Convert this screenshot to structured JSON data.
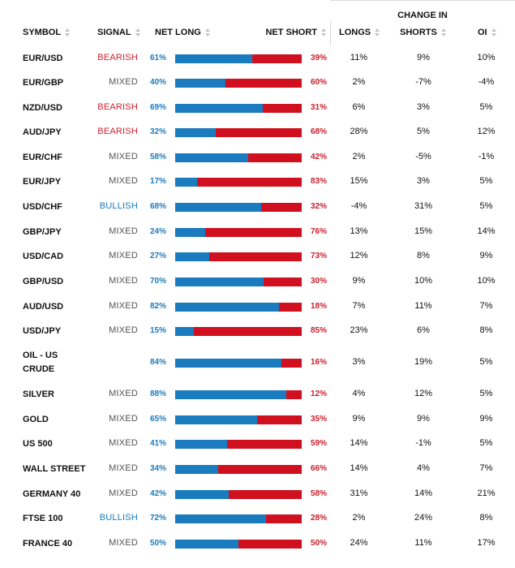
{
  "header": {
    "change_in": "CHANGE IN",
    "symbol": "SYMBOL",
    "signal": "SIGNAL",
    "net_long": "NET LONG",
    "net_short": "NET SHORT",
    "longs": "LONGS",
    "shorts": "SHORTS",
    "oi": "OI"
  },
  "colors": {
    "long": "#1a7bbf",
    "short": "#d0101f",
    "mixed": "#555555"
  },
  "rows": [
    {
      "symbol": "EUR/USD",
      "signal": "BEARISH",
      "net_long": "61%",
      "long_fraction": 0.61,
      "net_short": "39%",
      "longs": "11%",
      "shorts": "9%",
      "oi": "10%"
    },
    {
      "symbol": "EUR/GBP",
      "signal": "MIXED",
      "net_long": "40%",
      "long_fraction": 0.4,
      "net_short": "60%",
      "longs": "2%",
      "shorts": "-7%",
      "oi": "-4%"
    },
    {
      "symbol": "NZD/USD",
      "signal": "BEARISH",
      "net_long": "69%",
      "long_fraction": 0.69,
      "net_short": "31%",
      "longs": "6%",
      "shorts": "3%",
      "oi": "5%"
    },
    {
      "symbol": "AUD/JPY",
      "signal": "BEARISH",
      "net_long": "32%",
      "long_fraction": 0.32,
      "net_short": "68%",
      "longs": "28%",
      "shorts": "5%",
      "oi": "12%"
    },
    {
      "symbol": "EUR/CHF",
      "signal": "MIXED",
      "net_long": "58%",
      "long_fraction": 0.58,
      "net_short": "42%",
      "longs": "2%",
      "shorts": "-5%",
      "oi": "-1%"
    },
    {
      "symbol": "EUR/JPY",
      "signal": "MIXED",
      "net_long": "17%",
      "long_fraction": 0.17,
      "net_short": "83%",
      "longs": "15%",
      "shorts": "3%",
      "oi": "5%"
    },
    {
      "symbol": "USD/CHF",
      "signal": "BULLISH",
      "net_long": "68%",
      "long_fraction": 0.68,
      "net_short": "32%",
      "longs": "-4%",
      "shorts": "31%",
      "oi": "5%"
    },
    {
      "symbol": "GBP/JPY",
      "signal": "MIXED",
      "net_long": "24%",
      "long_fraction": 0.24,
      "net_short": "76%",
      "longs": "13%",
      "shorts": "15%",
      "oi": "14%"
    },
    {
      "symbol": "USD/CAD",
      "signal": "MIXED",
      "net_long": "27%",
      "long_fraction": 0.27,
      "net_short": "73%",
      "longs": "12%",
      "shorts": "8%",
      "oi": "9%"
    },
    {
      "symbol": "GBP/USD",
      "signal": "MIXED",
      "net_long": "70%",
      "long_fraction": 0.7,
      "net_short": "30%",
      "longs": "9%",
      "shorts": "10%",
      "oi": "10%"
    },
    {
      "symbol": "AUD/USD",
      "signal": "MIXED",
      "net_long": "82%",
      "long_fraction": 0.82,
      "net_short": "18%",
      "longs": "7%",
      "shorts": "11%",
      "oi": "7%"
    },
    {
      "symbol": "USD/JPY",
      "signal": "MIXED",
      "net_long": "15%",
      "long_fraction": 0.15,
      "net_short": "85%",
      "longs": "23%",
      "shorts": "6%",
      "oi": "8%"
    },
    {
      "symbol": "OIL - US CRUDE",
      "signal": "",
      "net_long": "84%",
      "long_fraction": 0.84,
      "net_short": "16%",
      "longs": "3%",
      "shorts": "19%",
      "oi": "5%"
    },
    {
      "symbol": "SILVER",
      "signal": "MIXED",
      "net_long": "88%",
      "long_fraction": 0.88,
      "net_short": "12%",
      "longs": "4%",
      "shorts": "12%",
      "oi": "5%"
    },
    {
      "symbol": "GOLD",
      "signal": "MIXED",
      "net_long": "65%",
      "long_fraction": 0.65,
      "net_short": "35%",
      "longs": "9%",
      "shorts": "9%",
      "oi": "9%"
    },
    {
      "symbol": "US 500",
      "signal": "MIXED",
      "net_long": "41%",
      "long_fraction": 0.41,
      "net_short": "59%",
      "longs": "14%",
      "shorts": "-1%",
      "oi": "5%"
    },
    {
      "symbol": "WALL STREET",
      "signal": "MIXED",
      "net_long": "34%",
      "long_fraction": 0.34,
      "net_short": "66%",
      "longs": "14%",
      "shorts": "4%",
      "oi": "7%"
    },
    {
      "symbol": "GERMANY 40",
      "signal": "MIXED",
      "net_long": "42%",
      "long_fraction": 0.42,
      "net_short": "58%",
      "longs": "31%",
      "shorts": "14%",
      "oi": "21%"
    },
    {
      "symbol": "FTSE 100",
      "signal": "BULLISH",
      "net_long": "72%",
      "long_fraction": 0.72,
      "net_short": "28%",
      "longs": "2%",
      "shorts": "24%",
      "oi": "8%"
    },
    {
      "symbol": "FRANCE 40",
      "signal": "MIXED",
      "net_long": "50%",
      "long_fraction": 0.5,
      "net_short": "50%",
      "longs": "24%",
      "shorts": "11%",
      "oi": "17%"
    }
  ]
}
